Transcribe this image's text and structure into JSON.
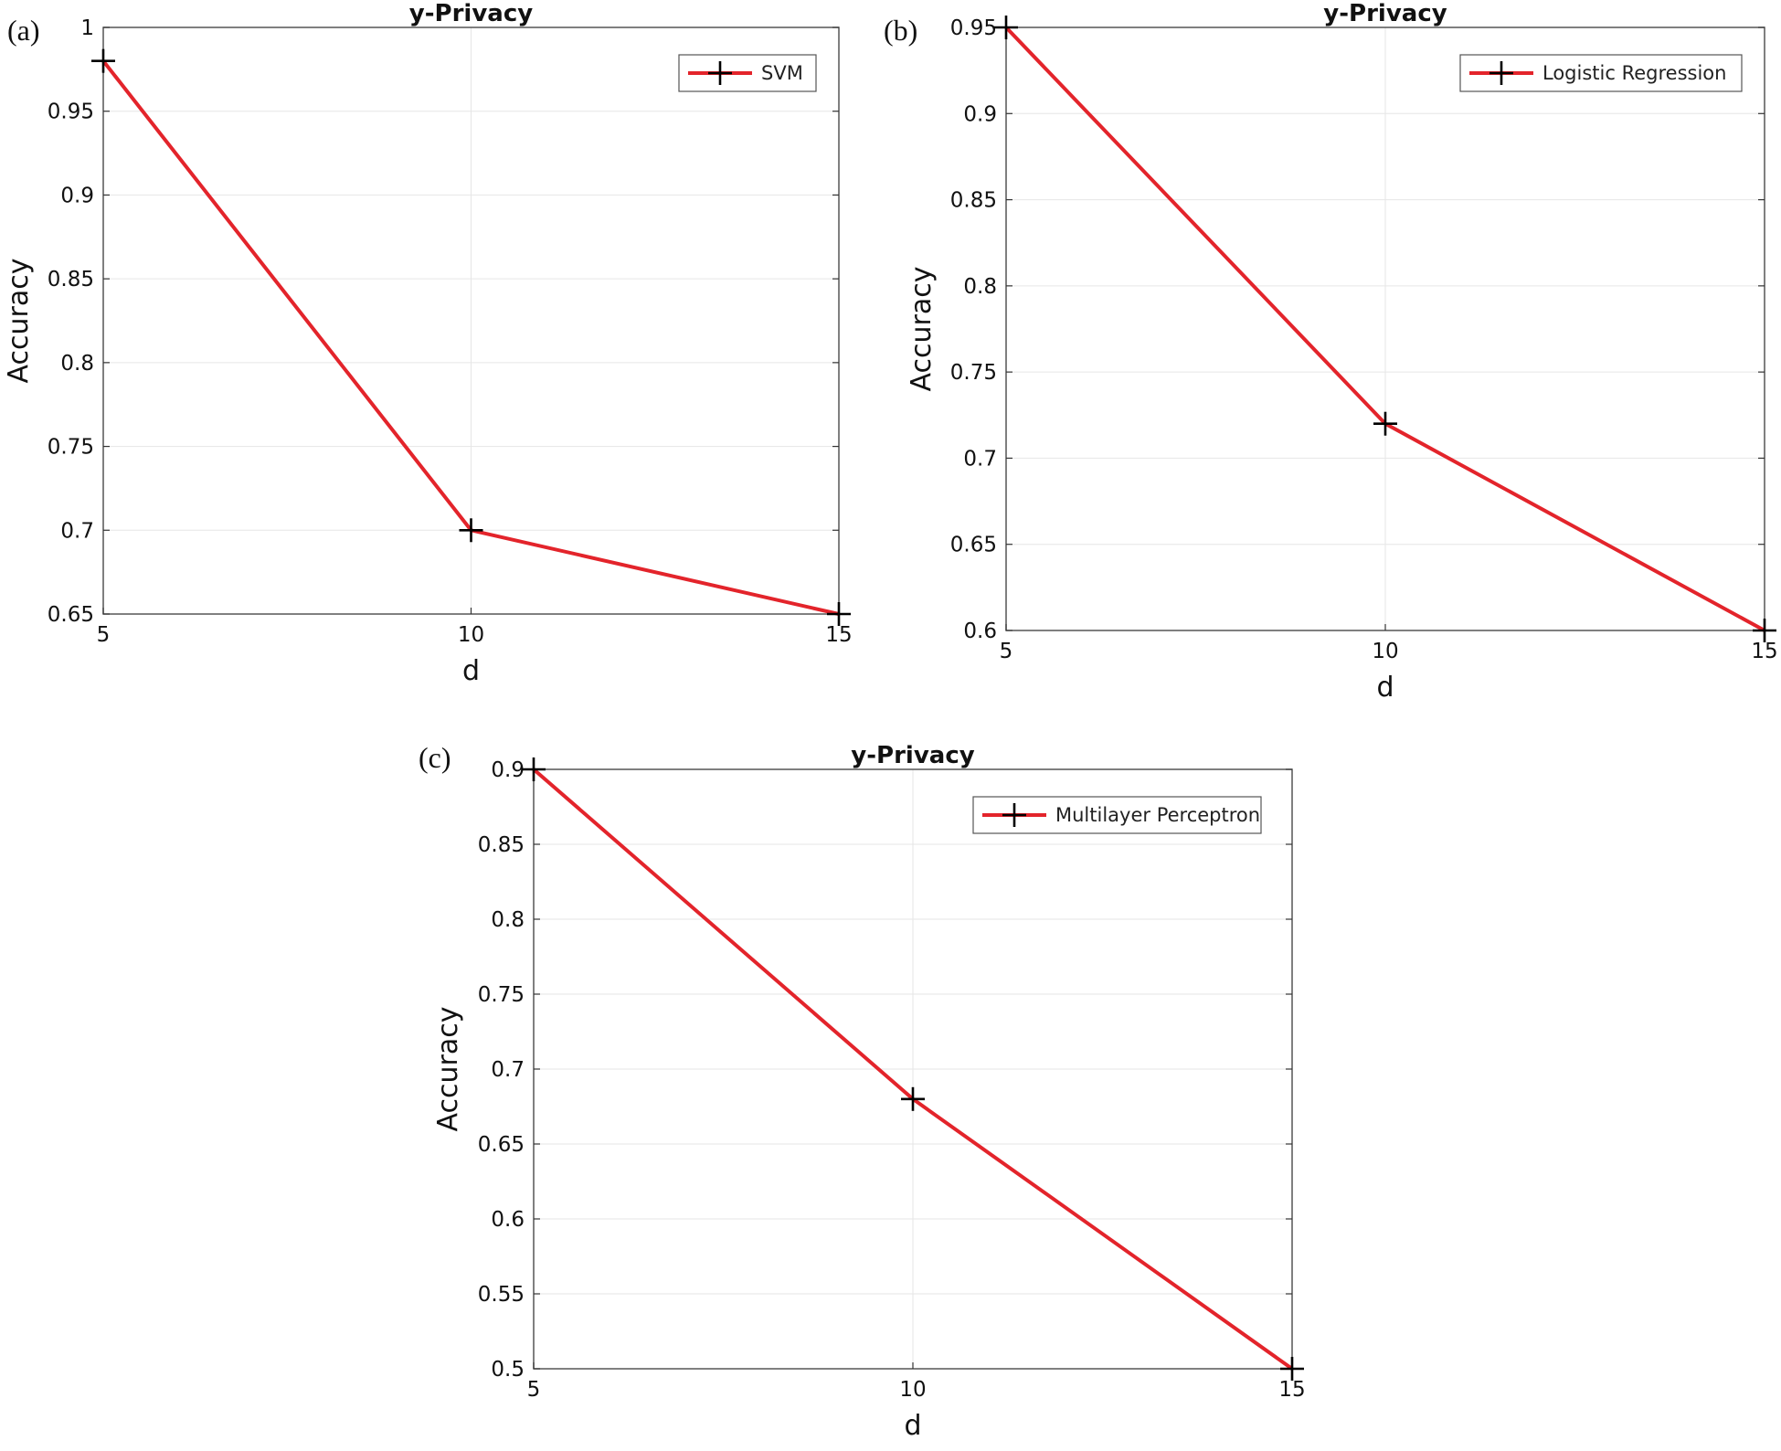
{
  "colors": {
    "line": "#e3242b",
    "marker": "#000000",
    "grid": "#e6e6e6",
    "axis": "#555555"
  },
  "chart_data": [
    {
      "panel_label": "(a)",
      "type": "line",
      "title": "y-Privacy",
      "xlabel": "d",
      "ylabel": "Accuracy",
      "x": [
        5,
        10,
        15
      ],
      "xlim": [
        5,
        15
      ],
      "ylim": [
        0.65,
        1
      ],
      "xticks": [
        5,
        10,
        15
      ],
      "xtick_labels": [
        "5",
        "10",
        "15"
      ],
      "yticks": [
        0.65,
        0.7,
        0.75,
        0.8,
        0.85,
        0.9,
        0.95,
        1
      ],
      "ytick_labels": [
        "0.65",
        "0.7",
        "0.75",
        "0.8",
        "0.85",
        "0.9",
        "0.95",
        "1"
      ],
      "grid": true,
      "legend_position": "top-right",
      "series": [
        {
          "name": "SVM",
          "values": [
            0.98,
            0.7,
            0.65
          ]
        }
      ]
    },
    {
      "panel_label": "(b)",
      "type": "line",
      "title": "y-Privacy",
      "xlabel": "d",
      "ylabel": "Accuracy",
      "x": [
        5,
        10,
        15
      ],
      "xlim": [
        5,
        15
      ],
      "ylim": [
        0.6,
        0.95
      ],
      "xticks": [
        5,
        10,
        15
      ],
      "xtick_labels": [
        "5",
        "10",
        "15"
      ],
      "yticks": [
        0.6,
        0.65,
        0.7,
        0.75,
        0.8,
        0.85,
        0.9,
        0.95
      ],
      "ytick_labels": [
        "0.6",
        "0.65",
        "0.7",
        "0.75",
        "0.8",
        "0.85",
        "0.9",
        "0.95"
      ],
      "grid": true,
      "legend_position": "top-right",
      "series": [
        {
          "name": "Logistic Regression",
          "values": [
            0.95,
            0.72,
            0.6
          ]
        }
      ]
    },
    {
      "panel_label": "(c)",
      "type": "line",
      "title": "y-Privacy",
      "xlabel": "d",
      "ylabel": "Accuracy",
      "x": [
        5,
        10,
        15
      ],
      "xlim": [
        5,
        15
      ],
      "ylim": [
        0.5,
        0.9
      ],
      "xticks": [
        5,
        10,
        15
      ],
      "xtick_labels": [
        "5",
        "10",
        "15"
      ],
      "yticks": [
        0.5,
        0.55,
        0.6,
        0.65,
        0.7,
        0.75,
        0.8,
        0.85,
        0.9
      ],
      "ytick_labels": [
        "0.5",
        "0.55",
        "0.6",
        "0.65",
        "0.7",
        "0.75",
        "0.8",
        "0.85",
        "0.9"
      ],
      "grid": true,
      "legend_position": "top-right",
      "series": [
        {
          "name": "Multilayer Perceptron",
          "values": [
            0.9,
            0.68,
            0.5
          ]
        }
      ]
    }
  ]
}
